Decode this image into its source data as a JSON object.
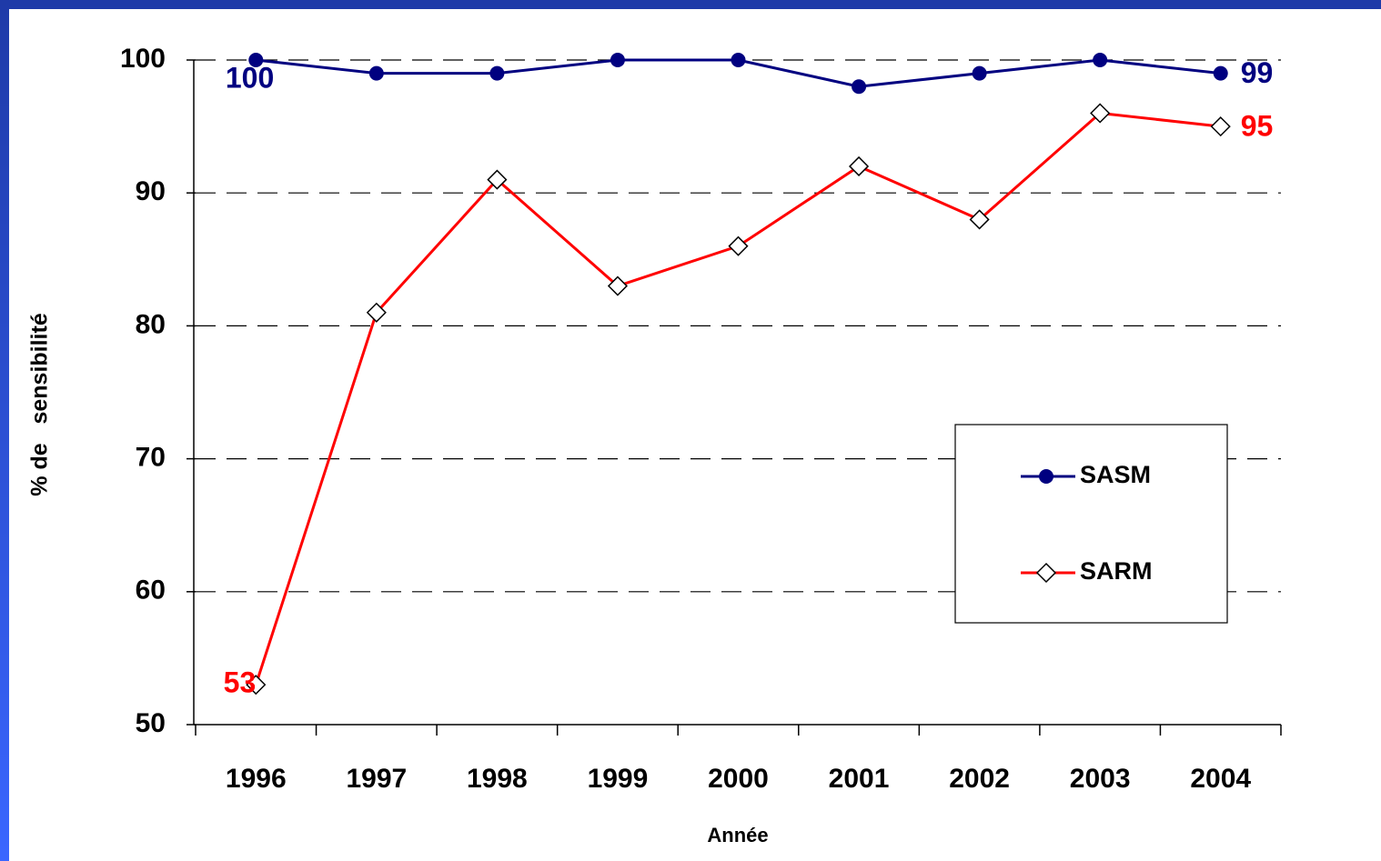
{
  "chart_data": {
    "type": "line",
    "x_label": "Année",
    "y_label": "% de   sensibilité",
    "categories": [
      "1996",
      "1997",
      "1998",
      "1999",
      "2000",
      "2001",
      "2002",
      "2003",
      "2004"
    ],
    "series": [
      {
        "name": "SASM",
        "color": "#000080",
        "marker": "circle",
        "values": [
          100,
          99,
          99,
          100,
          100,
          98,
          99,
          100,
          99
        ]
      },
      {
        "name": "SARM",
        "color": "#ff0000",
        "marker": "diamond",
        "values": [
          53,
          81,
          91,
          83,
          86,
          92,
          88,
          96,
          95
        ]
      }
    ],
    "ylim": [
      50,
      100
    ],
    "yticks": [
      50,
      60,
      70,
      80,
      90,
      100
    ],
    "grid": true,
    "legend": "right",
    "data_labels": "ends"
  }
}
